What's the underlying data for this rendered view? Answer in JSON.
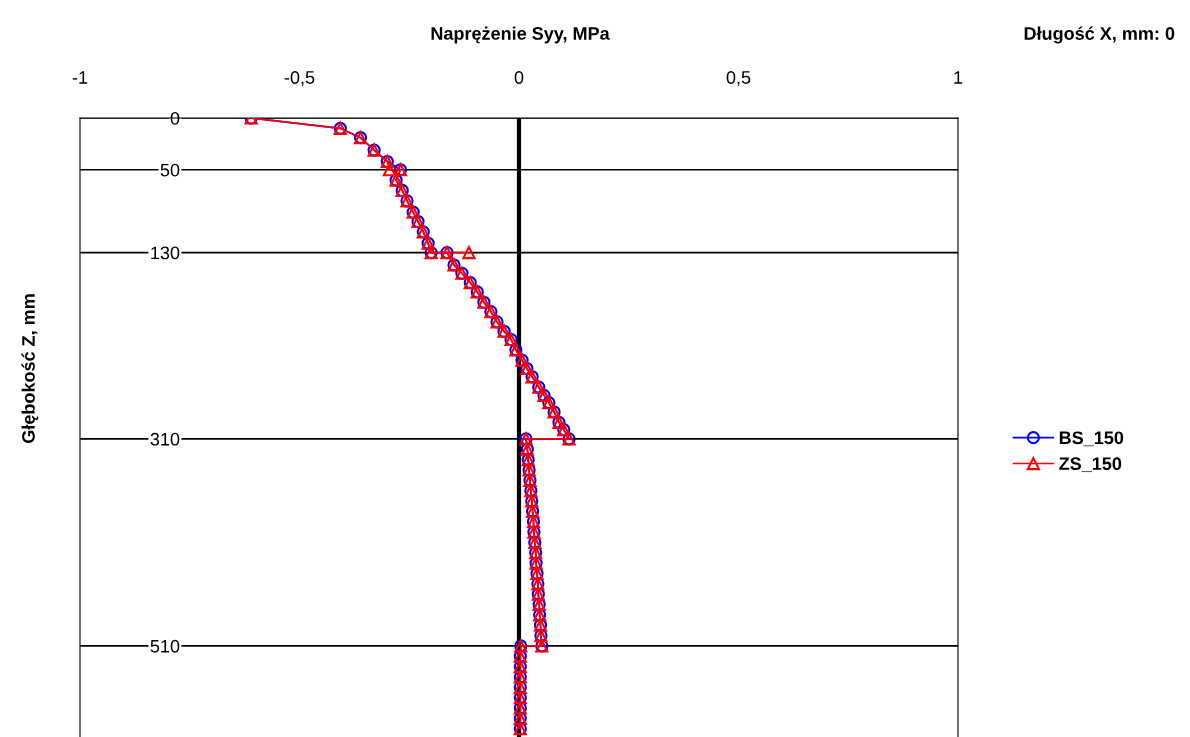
{
  "chart_data": {
    "type": "line",
    "xlabel": "Naprężenie Syy, MPa",
    "ylabel": "Głębokość Z, mm",
    "annotations": [
      "Długość X, mm: 0"
    ],
    "xlim": [
      -1,
      1
    ],
    "xticks": [
      -1,
      {
        "value": -0.5,
        "label": "-0,5"
      },
      0,
      {
        "value": 0.5,
        "label": "0,5"
      },
      1
    ],
    "ylim": [
      598,
      0
    ],
    "yticks": [
      0,
      50,
      130,
      310,
      510
    ],
    "grid": "y",
    "legend": "right",
    "ref_lines": [
      {
        "axis": "x",
        "value": 0,
        "color": "#000000"
      }
    ],
    "series": [
      {
        "name": "BS_150",
        "color": "#0000ff",
        "marker": "circle",
        "x": [
          -0.61,
          -0.407,
          -0.361,
          -0.33,
          -0.3,
          -0.27,
          -0.28,
          -0.266,
          -0.255,
          -0.241,
          -0.23,
          -0.218,
          -0.207,
          -0.2,
          -0.164,
          -0.148,
          -0.13,
          -0.111,
          -0.095,
          -0.08,
          -0.064,
          -0.05,
          -0.034,
          -0.018,
          -0.007,
          0.007,
          0.018,
          0.03,
          0.045,
          0.057,
          0.068,
          0.08,
          0.091,
          0.102,
          0.114,
          0.016,
          0.019,
          0.021,
          0.023,
          0.025,
          0.027,
          0.029,
          0.031,
          0.033,
          0.034,
          0.036,
          0.038,
          0.039,
          0.041,
          0.043,
          0.044,
          0.046,
          0.047,
          0.049,
          0.05,
          0.052,
          0.004,
          0.003,
          0.003,
          0.003,
          0.003,
          0.003,
          0.003,
          0.003,
          0.003
        ],
        "values": [
          0,
          10,
          19,
          31,
          42,
          50,
          60,
          70,
          80,
          91,
          100,
          110,
          121,
          130,
          130,
          142,
          150,
          159,
          168,
          178,
          187,
          197,
          206,
          214,
          224,
          234,
          242,
          250,
          260,
          268,
          275,
          284,
          294,
          301,
          310,
          310,
          320,
          330,
          340,
          350,
          360,
          370,
          380,
          390,
          400,
          410,
          420,
          430,
          440,
          450,
          460,
          470,
          480,
          490,
          500,
          510,
          510,
          520,
          530,
          540,
          550,
          560,
          570,
          580,
          590
        ]
      },
      {
        "name": "ZS_150",
        "color": "#ff0000",
        "marker": "triangle",
        "x": [
          -0.61,
          -0.407,
          -0.361,
          -0.33,
          -0.3,
          -0.295,
          -0.27,
          -0.28,
          -0.266,
          -0.255,
          -0.241,
          -0.23,
          -0.218,
          -0.207,
          -0.2,
          -0.114,
          -0.164,
          -0.148,
          -0.13,
          -0.111,
          -0.095,
          -0.08,
          -0.064,
          -0.05,
          -0.034,
          -0.018,
          -0.007,
          0.007,
          0.018,
          0.03,
          0.045,
          0.057,
          0.068,
          0.08,
          0.091,
          0.102,
          0.114,
          0.016,
          0.019,
          0.021,
          0.023,
          0.025,
          0.027,
          0.029,
          0.031,
          0.033,
          0.034,
          0.036,
          0.038,
          0.039,
          0.041,
          0.043,
          0.044,
          0.046,
          0.047,
          0.049,
          0.05,
          0.052,
          0.004,
          0.003,
          0.003,
          0.003,
          0.003,
          0.003,
          0.003,
          0.003,
          0.003
        ],
        "values": [
          0,
          10,
          19,
          31,
          42,
          50,
          50,
          60,
          70,
          80,
          91,
          100,
          110,
          121,
          130,
          130,
          130,
          142,
          150,
          159,
          168,
          178,
          187,
          197,
          206,
          214,
          224,
          234,
          242,
          250,
          260,
          268,
          275,
          284,
          294,
          301,
          310,
          310,
          320,
          330,
          340,
          350,
          360,
          370,
          380,
          390,
          400,
          410,
          420,
          430,
          440,
          450,
          460,
          470,
          480,
          490,
          500,
          510,
          510,
          520,
          530,
          540,
          550,
          560,
          570,
          580,
          590
        ]
      }
    ]
  }
}
